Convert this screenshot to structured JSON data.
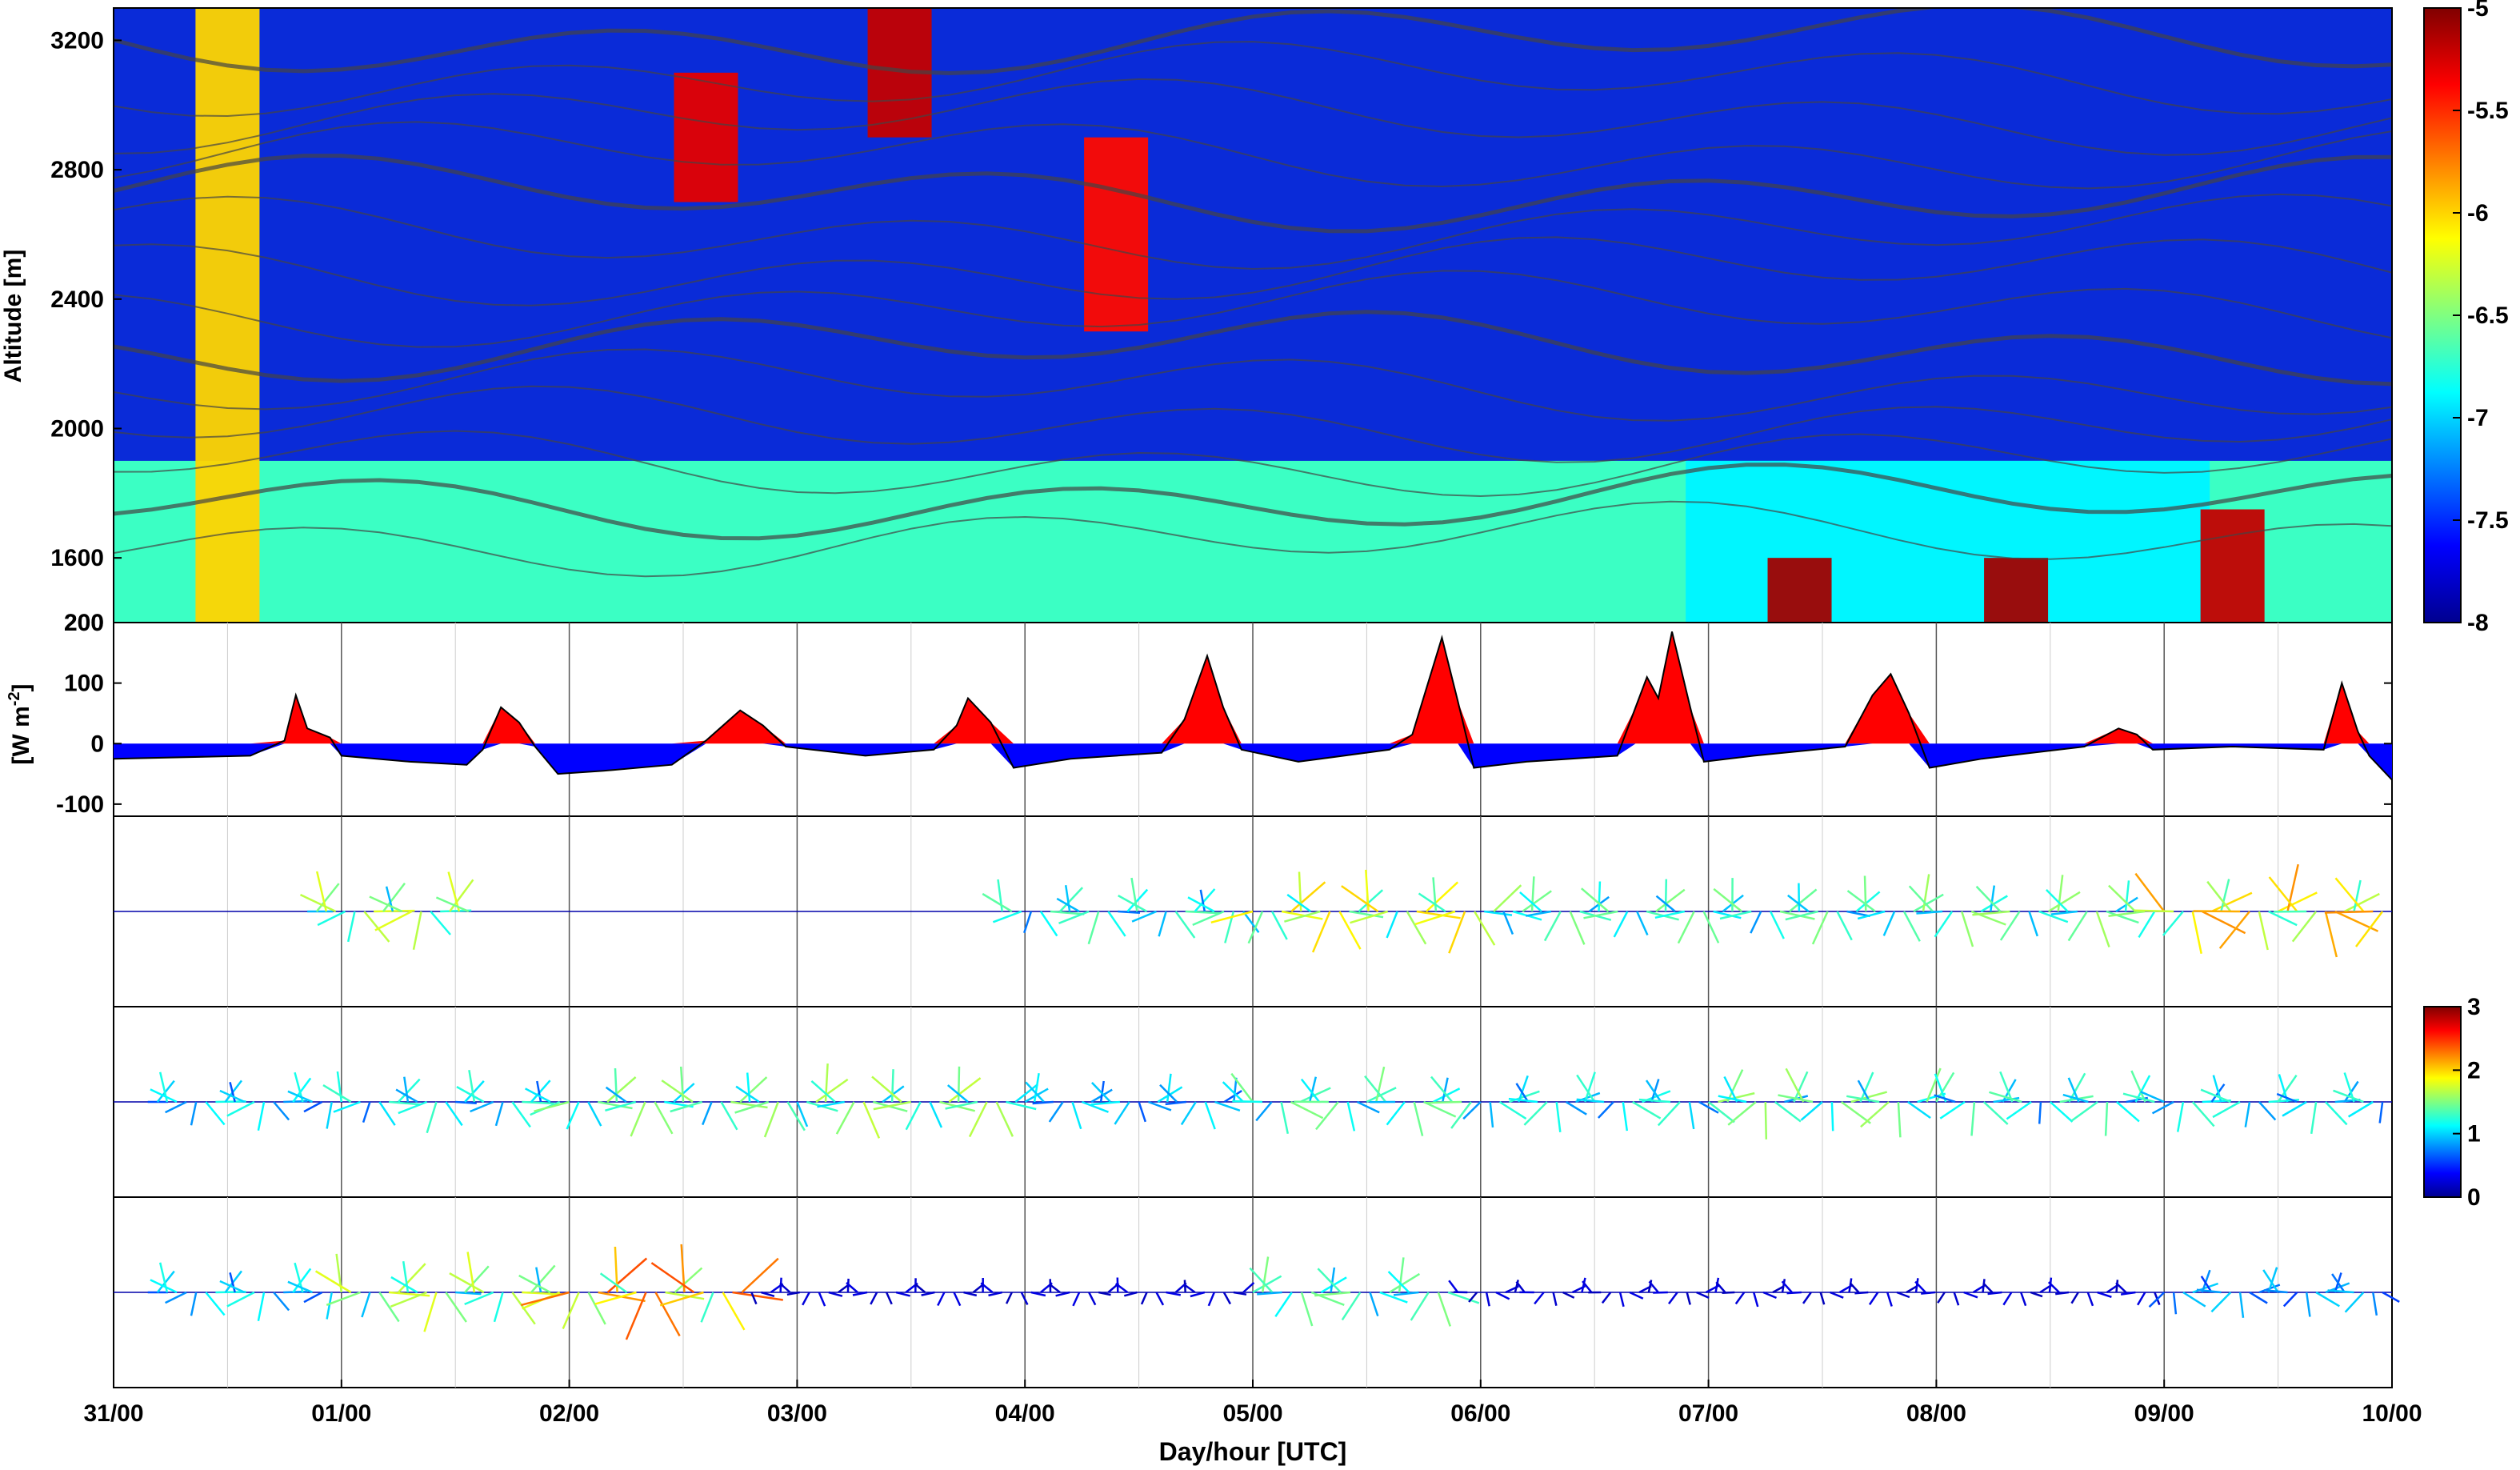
{
  "chart_data": [
    {
      "type": "heatmap",
      "panel": "contourf",
      "ylabel": "Altitude [m]",
      "yticks": [
        {
          "value": 200,
          "label": "200"
        },
        {
          "value": 1600,
          "label": "1600"
        },
        {
          "value": 2000,
          "label": "2000"
        },
        {
          "value": 2400,
          "label": "2400"
        },
        {
          "value": 2800,
          "label": "2800"
        },
        {
          "value": 3200,
          "label": "3200"
        }
      ],
      "ylim_display": [
        1400,
        3300
      ],
      "colorbar": {
        "ticks": [
          "-5",
          "-5.5",
          "-6",
          "-6.5",
          "-7",
          "-7.5",
          "-8"
        ],
        "range": [
          -8,
          -5
        ],
        "colormap": "jet"
      },
      "features": [
        {
          "x_day": 0.5,
          "ybottom": 1400,
          "ytop": 3300,
          "level": -6.0
        },
        {
          "x_day": 2.6,
          "ybottom": 2700,
          "ytop": 3100,
          "level": -5.3
        },
        {
          "x_day": 3.45,
          "ybottom": 2900,
          "ytop": 3300,
          "level": -5.2
        },
        {
          "x_day": 4.4,
          "ybottom": 2300,
          "ytop": 2900,
          "level": -5.4
        },
        {
          "x_day": 7.4,
          "ybottom": 1400,
          "ytop": 1600,
          "level": -5.1
        },
        {
          "x_day": 8.35,
          "ybottom": 1400,
          "ytop": 1600,
          "level": -5.1
        },
        {
          "x_day": 9.3,
          "ybottom": 1400,
          "ytop": 1750,
          "level": -5.2
        }
      ]
    },
    {
      "type": "area",
      "panel": "flux",
      "ylabel": "[W m",
      "ylabel_sup": "-2",
      "ylabel_end": "]",
      "ylim": [
        -120,
        200
      ],
      "yticks": [
        {
          "value": 200,
          "label": "200"
        },
        {
          "value": 100,
          "label": "100"
        },
        {
          "value": 0,
          "label": "0"
        },
        {
          "value": -100,
          "label": "-100"
        }
      ],
      "positive_color": "#ff0000",
      "negative_color": "#0000ff",
      "series": [
        {
          "x": 0.0,
          "y": -25
        },
        {
          "x": 0.6,
          "y": -20
        },
        {
          "x": 0.75,
          "y": 5
        },
        {
          "x": 0.8,
          "y": 80
        },
        {
          "x": 0.85,
          "y": 25
        },
        {
          "x": 0.95,
          "y": 10
        },
        {
          "x": 1.0,
          "y": -20
        },
        {
          "x": 1.3,
          "y": -30
        },
        {
          "x": 1.55,
          "y": -35
        },
        {
          "x": 1.62,
          "y": -10
        },
        {
          "x": 1.7,
          "y": 60
        },
        {
          "x": 1.78,
          "y": 35
        },
        {
          "x": 1.85,
          "y": -5
        },
        {
          "x": 1.95,
          "y": -50
        },
        {
          "x": 2.15,
          "y": -45
        },
        {
          "x": 2.45,
          "y": -35
        },
        {
          "x": 2.6,
          "y": 5
        },
        {
          "x": 2.75,
          "y": 55
        },
        {
          "x": 2.85,
          "y": 30
        },
        {
          "x": 2.95,
          "y": -5
        },
        {
          "x": 3.3,
          "y": -20
        },
        {
          "x": 3.6,
          "y": -10
        },
        {
          "x": 3.7,
          "y": 30
        },
        {
          "x": 3.75,
          "y": 75
        },
        {
          "x": 3.85,
          "y": 35
        },
        {
          "x": 3.95,
          "y": -40
        },
        {
          "x": 4.2,
          "y": -25
        },
        {
          "x": 4.6,
          "y": -15
        },
        {
          "x": 4.7,
          "y": 40
        },
        {
          "x": 4.8,
          "y": 145
        },
        {
          "x": 4.87,
          "y": 60
        },
        {
          "x": 4.95,
          "y": -10
        },
        {
          "x": 5.2,
          "y": -30
        },
        {
          "x": 5.6,
          "y": -10
        },
        {
          "x": 5.7,
          "y": 15
        },
        {
          "x": 5.83,
          "y": 175
        },
        {
          "x": 5.9,
          "y": 70
        },
        {
          "x": 5.97,
          "y": -40
        },
        {
          "x": 6.2,
          "y": -30
        },
        {
          "x": 6.6,
          "y": -20
        },
        {
          "x": 6.68,
          "y": 60
        },
        {
          "x": 6.73,
          "y": 110
        },
        {
          "x": 6.78,
          "y": 75
        },
        {
          "x": 6.84,
          "y": 185
        },
        {
          "x": 6.92,
          "y": 60
        },
        {
          "x": 6.98,
          "y": -30
        },
        {
          "x": 7.2,
          "y": -20
        },
        {
          "x": 7.6,
          "y": -5
        },
        {
          "x": 7.72,
          "y": 80
        },
        {
          "x": 7.8,
          "y": 115
        },
        {
          "x": 7.88,
          "y": 50
        },
        {
          "x": 7.97,
          "y": -40
        },
        {
          "x": 8.2,
          "y": -25
        },
        {
          "x": 8.65,
          "y": -5
        },
        {
          "x": 8.8,
          "y": 25
        },
        {
          "x": 8.88,
          "y": 15
        },
        {
          "x": 8.95,
          "y": -10
        },
        {
          "x": 9.3,
          "y": -5
        },
        {
          "x": 9.7,
          "y": -10
        },
        {
          "x": 9.78,
          "y": 100
        },
        {
          "x": 9.85,
          "y": 20
        },
        {
          "x": 9.9,
          "y": -20
        },
        {
          "x": 10.0,
          "y": -60
        }
      ]
    },
    {
      "type": "quiver",
      "panel": "vectors_level_1",
      "baseline": "middle",
      "colorbar": {
        "ticks": [
          "3",
          "2",
          "1",
          "0"
        ],
        "range": [
          0,
          3
        ],
        "colormap": "jet"
      },
      "segments": [
        {
          "from": 0.85,
          "to": 1.6,
          "magnitude": 1.8
        },
        {
          "from": 3.9,
          "to": 5.0,
          "magnitude": 1.4
        },
        {
          "from": 5.0,
          "to": 6.1,
          "magnitude": 2.0
        },
        {
          "from": 6.1,
          "to": 7.9,
          "magnitude": 1.5
        },
        {
          "from": 7.9,
          "to": 9.0,
          "magnitude": 1.6
        },
        {
          "from": 9.0,
          "to": 10.0,
          "magnitude": 2.2
        }
      ]
    },
    {
      "type": "quiver",
      "panel": "vectors_level_2",
      "baseline": "middle",
      "segments": [
        {
          "from": 0.15,
          "to": 1.0,
          "magnitude": 1.2
        },
        {
          "from": 1.0,
          "to": 2.0,
          "magnitude": 1.3
        },
        {
          "from": 2.0,
          "to": 3.0,
          "magnitude": 1.6
        },
        {
          "from": 3.0,
          "to": 4.0,
          "magnitude": 1.7
        },
        {
          "from": 4.0,
          "to": 5.0,
          "magnitude": 1.1
        },
        {
          "from": 5.0,
          "to": 6.0,
          "magnitude": 1.5
        },
        {
          "from": 6.0,
          "to": 7.0,
          "magnitude": 1.3
        },
        {
          "from": 7.0,
          "to": 8.0,
          "magnitude": 1.6
        },
        {
          "from": 8.0,
          "to": 9.0,
          "magnitude": 1.4
        },
        {
          "from": 9.0,
          "to": 10.0,
          "magnitude": 1.3
        }
      ]
    },
    {
      "type": "quiver",
      "panel": "vectors_level_3",
      "baseline": "middle",
      "segments": [
        {
          "from": 0.15,
          "to": 1.0,
          "magnitude": 1.2
        },
        {
          "from": 1.0,
          "to": 2.0,
          "magnitude": 1.8
        },
        {
          "from": 2.0,
          "to": 2.8,
          "magnitude": 2.4
        },
        {
          "from": 2.8,
          "to": 5.0,
          "magnitude": 0.3
        },
        {
          "from": 5.0,
          "to": 5.9,
          "magnitude": 1.5
        },
        {
          "from": 5.9,
          "to": 9.0,
          "magnitude": 0.3
        },
        {
          "from": 9.0,
          "to": 10.0,
          "magnitude": 1.0
        }
      ]
    }
  ],
  "x_axis": {
    "label": "Day/hour [UTC]",
    "ticks": [
      {
        "value": 0,
        "label": "31/00"
      },
      {
        "value": 1,
        "label": "01/00"
      },
      {
        "value": 2,
        "label": "02/00"
      },
      {
        "value": 3,
        "label": "03/00"
      },
      {
        "value": 4,
        "label": "04/00"
      },
      {
        "value": 5,
        "label": "05/00"
      },
      {
        "value": 6,
        "label": "06/00"
      },
      {
        "value": 7,
        "label": "07/00"
      },
      {
        "value": 8,
        "label": "08/00"
      },
      {
        "value": 9,
        "label": "09/00"
      },
      {
        "value": 10,
        "label": "10/00"
      }
    ],
    "range": [
      0,
      10
    ]
  }
}
